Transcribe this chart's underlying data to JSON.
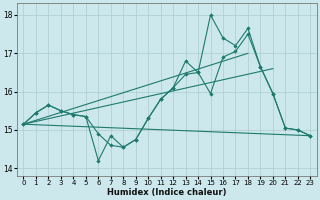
{
  "xlabel": "Humidex (Indice chaleur)",
  "background_color": "#cce8ec",
  "grid_color": "#aacccc",
  "line_color": "#1e7a6e",
  "xlim": [
    -0.5,
    23.5
  ],
  "ylim": [
    13.8,
    18.3
  ],
  "yticks": [
    14,
    15,
    16,
    17,
    18
  ],
  "xticks": [
    0,
    1,
    2,
    3,
    4,
    5,
    6,
    7,
    8,
    9,
    10,
    11,
    12,
    13,
    14,
    15,
    16,
    17,
    18,
    19,
    20,
    21,
    22,
    23
  ],
  "curve1_x": [
    0,
    1,
    2,
    3,
    4,
    5,
    6,
    7,
    8,
    9,
    10,
    11,
    12,
    13,
    14,
    15,
    16,
    17,
    18,
    19,
    20,
    21,
    22,
    23
  ],
  "curve1_y": [
    15.15,
    15.45,
    15.65,
    15.5,
    15.4,
    15.35,
    14.9,
    14.6,
    14.55,
    14.75,
    15.3,
    15.8,
    16.1,
    16.45,
    16.5,
    15.95,
    16.9,
    17.05,
    17.5,
    16.65,
    15.95,
    15.05,
    15.0,
    14.85
  ],
  "curve2_x": [
    0,
    1,
    2,
    3,
    4,
    5,
    6,
    7,
    8,
    9,
    10,
    11,
    12,
    13,
    14,
    15,
    16,
    17,
    18,
    19,
    20,
    21,
    22,
    23
  ],
  "curve2_y": [
    15.15,
    15.45,
    15.65,
    15.5,
    15.4,
    15.35,
    14.2,
    14.85,
    14.55,
    14.75,
    15.3,
    15.8,
    16.1,
    16.8,
    16.5,
    18.0,
    17.4,
    17.2,
    17.65,
    16.65,
    15.95,
    15.05,
    15.0,
    14.85
  ],
  "tline1_x": [
    0,
    18
  ],
  "tline1_y": [
    15.15,
    17.0
  ],
  "tline2_x": [
    0,
    20
  ],
  "tline2_y": [
    15.15,
    16.6
  ],
  "tline3_x": [
    0,
    23
  ],
  "tline3_y": [
    15.15,
    14.85
  ]
}
